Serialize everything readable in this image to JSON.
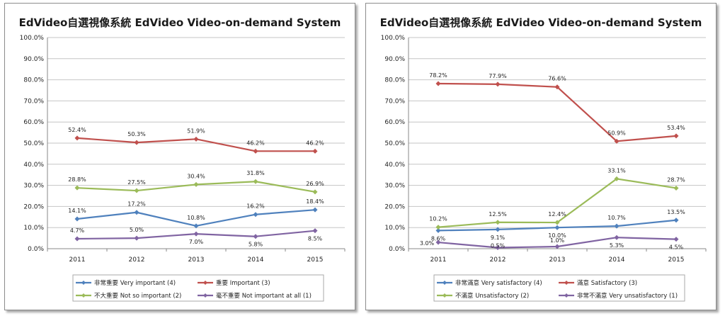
{
  "chart_data": [
    {
      "type": "line",
      "title": "EdVideo自選視像系統  EdVideo Video-on-demand System",
      "xlabel": "",
      "ylabel": "",
      "categories": [
        "2011",
        "2012",
        "2013",
        "2014",
        "2015"
      ],
      "ylim": [
        0,
        100
      ],
      "yticks": [
        "0.0%",
        "10.0%",
        "20.0%",
        "30.0%",
        "40.0%",
        "50.0%",
        "60.0%",
        "70.0%",
        "80.0%",
        "90.0%",
        "100.0%"
      ],
      "grid": true,
      "legend_position": "bottom",
      "series": [
        {
          "name": "非常重要 Very important (4)",
          "color": "#4f81bd",
          "values": [
            14.1,
            17.2,
            10.8,
            16.2,
            18.4
          ],
          "labels": [
            "14.1%",
            "17.2%",
            "10.8%",
            "16.2%",
            "18.4%"
          ]
        },
        {
          "name": "重要 Important (3)",
          "color": "#c0504d",
          "values": [
            52.4,
            50.3,
            51.9,
            46.2,
            46.2
          ],
          "labels": [
            "52.4%",
            "50.3%",
            "51.9%",
            "46.2%",
            "46.2%"
          ]
        },
        {
          "name": "不大重要 Not so important (2)",
          "color": "#9bbb59",
          "values": [
            28.8,
            27.5,
            30.4,
            31.8,
            26.9
          ],
          "labels": [
            "28.8%",
            "27.5%",
            "30.4%",
            "31.8%",
            "26.9%"
          ]
        },
        {
          "name": "毫不重要 Not important at all (1)",
          "color": "#8064a2",
          "values": [
            4.7,
            5.0,
            7.0,
            5.8,
            8.5
          ],
          "labels": [
            "4.7%",
            "5.0%",
            "7.0%",
            "5.8%",
            "8.5%"
          ]
        }
      ]
    },
    {
      "type": "line",
      "title": "EdVideo自選視像系統  EdVideo Video-on-demand System",
      "xlabel": "",
      "ylabel": "",
      "categories": [
        "2011",
        "2012",
        "2013",
        "2014",
        "2015"
      ],
      "ylim": [
        0,
        100
      ],
      "yticks": [
        "0.0%",
        "10.0%",
        "20.0%",
        "30.0%",
        "40.0%",
        "50.0%",
        "60.0%",
        "70.0%",
        "80.0%",
        "90.0%",
        "100.0%"
      ],
      "grid": true,
      "legend_position": "bottom",
      "series": [
        {
          "name": "非常滿意 Very satisfactory (4)",
          "color": "#4f81bd",
          "values": [
            8.6,
            9.1,
            10.0,
            10.7,
            13.5
          ],
          "labels": [
            "8.6%",
            "9.1%",
            "10.0%",
            "10.7%",
            "13.5%"
          ]
        },
        {
          "name": "滿意 Satisfactory (3)",
          "color": "#c0504d",
          "values": [
            78.2,
            77.9,
            76.6,
            50.9,
            53.4
          ],
          "labels": [
            "78.2%",
            "77.9%",
            "76.6%",
            "50.9%",
            "53.4%"
          ]
        },
        {
          "name": "不滿意 Unsatisfactory (2)",
          "color": "#9bbb59",
          "values": [
            10.2,
            12.5,
            12.4,
            33.1,
            28.7
          ],
          "labels": [
            "10.2%",
            "12.5%",
            "12.4%",
            "33.1%",
            "28.7%"
          ]
        },
        {
          "name": "非常不滿意 Very unsatisfactory (1)",
          "color": "#8064a2",
          "values": [
            3.0,
            0.5,
            1.0,
            5.3,
            4.5
          ],
          "labels": [
            "3.0%",
            "0.5%",
            "1.0%",
            "5.3%",
            "4.5%"
          ]
        }
      ]
    }
  ]
}
